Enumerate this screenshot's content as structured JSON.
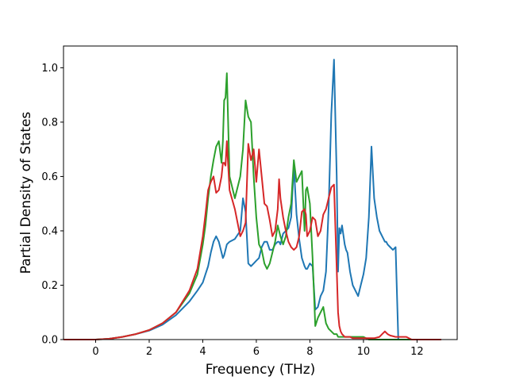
{
  "chart_data": {
    "type": "line",
    "title": "",
    "xlabel": "Frequency (THz)",
    "ylabel": "Partial Density of States",
    "xlim": [
      -1.2,
      13.5
    ],
    "ylim": [
      0,
      1.08
    ],
    "xticks": [
      "0",
      "2",
      "4",
      "6",
      "8",
      "10",
      "12"
    ],
    "yticks": [
      "0.0",
      "0.2",
      "0.4",
      "0.6",
      "0.8",
      "1.0"
    ],
    "grid": false,
    "legend": "none",
    "series": [
      {
        "color": "#1f77b4",
        "x": [
          -1.2,
          0,
          0.5,
          1,
          1.5,
          2,
          2.5,
          3,
          3.5,
          3.8,
          4.0,
          4.1,
          4.2,
          4.3,
          4.4,
          4.5,
          4.6,
          4.7,
          4.75,
          4.8,
          4.85,
          4.9,
          5.0,
          5.2,
          5.4,
          5.5,
          5.6,
          5.7,
          5.8,
          5.9,
          6.0,
          6.1,
          6.2,
          6.3,
          6.4,
          6.5,
          6.6,
          6.7,
          6.8,
          6.85,
          6.9,
          7.0,
          7.1,
          7.2,
          7.3,
          7.4,
          7.5,
          7.6,
          7.7,
          7.8,
          7.85,
          7.9,
          8.0,
          8.1,
          8.2,
          8.3,
          8.4,
          8.5,
          8.6,
          8.7,
          8.8,
          8.9,
          9.0,
          9.05,
          9.1,
          9.15,
          9.2,
          9.3,
          9.35,
          9.4,
          9.5,
          9.6,
          9.8,
          9.9,
          10.0,
          10.1,
          10.2,
          10.3,
          10.4,
          10.5,
          10.6,
          10.7,
          10.75,
          10.8,
          10.85,
          10.9,
          11.0,
          11.1,
          11.2,
          11.3,
          11.4,
          11.5,
          11.6,
          11.65,
          11.7,
          11.75,
          12.0,
          12.9
        ],
        "y": [
          0.0,
          0.0,
          0.003,
          0.01,
          0.02,
          0.033,
          0.055,
          0.09,
          0.14,
          0.18,
          0.21,
          0.24,
          0.27,
          0.32,
          0.36,
          0.38,
          0.36,
          0.32,
          0.3,
          0.31,
          0.33,
          0.35,
          0.36,
          0.37,
          0.4,
          0.52,
          0.47,
          0.28,
          0.27,
          0.28,
          0.29,
          0.3,
          0.34,
          0.36,
          0.36,
          0.33,
          0.33,
          0.35,
          0.36,
          0.36,
          0.35,
          0.39,
          0.4,
          0.41,
          0.45,
          0.64,
          0.46,
          0.37,
          0.3,
          0.27,
          0.26,
          0.26,
          0.28,
          0.27,
          0.11,
          0.12,
          0.16,
          0.18,
          0.25,
          0.48,
          0.83,
          1.03,
          0.6,
          0.25,
          0.41,
          0.39,
          0.42,
          0.35,
          0.33,
          0.32,
          0.25,
          0.2,
          0.16,
          0.2,
          0.24,
          0.3,
          0.45,
          0.71,
          0.52,
          0.45,
          0.4,
          0.38,
          0.37,
          0.36,
          0.36,
          0.35,
          0.34,
          0.33,
          0.34,
          0.0,
          0.0,
          0.0,
          0.0,
          0.0,
          0.0,
          0.0,
          0.0,
          0.0
        ]
      },
      {
        "color": "#2ca02c",
        "x": [
          -1.2,
          0,
          0.5,
          1,
          1.5,
          2,
          2.5,
          3,
          3.5,
          3.8,
          4.0,
          4.1,
          4.2,
          4.3,
          4.4,
          4.5,
          4.6,
          4.7,
          4.75,
          4.8,
          4.85,
          4.9,
          5.0,
          5.2,
          5.4,
          5.5,
          5.6,
          5.7,
          5.8,
          5.9,
          6.0,
          6.1,
          6.2,
          6.3,
          6.4,
          6.5,
          6.6,
          6.7,
          6.8,
          6.85,
          6.9,
          7.0,
          7.1,
          7.2,
          7.3,
          7.4,
          7.5,
          7.6,
          7.7,
          7.8,
          7.85,
          7.9,
          8.0,
          8.1,
          8.2,
          8.3,
          8.4,
          8.5,
          8.6,
          8.7,
          8.8,
          8.9,
          9.0,
          9.05,
          9.1,
          9.15,
          9.2,
          9.3,
          9.4,
          9.5,
          9.6,
          9.8,
          10.0,
          10.2,
          10.4,
          10.6,
          10.8,
          11.0,
          11.2,
          11.4,
          11.6,
          11.8,
          12.0,
          12.9
        ],
        "y": [
          0.0,
          0.0,
          0.003,
          0.01,
          0.02,
          0.035,
          0.06,
          0.1,
          0.17,
          0.24,
          0.35,
          0.42,
          0.52,
          0.6,
          0.66,
          0.71,
          0.73,
          0.65,
          0.73,
          0.88,
          0.89,
          0.98,
          0.6,
          0.52,
          0.6,
          0.7,
          0.88,
          0.82,
          0.8,
          0.6,
          0.45,
          0.35,
          0.33,
          0.28,
          0.26,
          0.28,
          0.32,
          0.36,
          0.42,
          0.4,
          0.38,
          0.35,
          0.38,
          0.45,
          0.5,
          0.66,
          0.58,
          0.6,
          0.62,
          0.4,
          0.55,
          0.56,
          0.5,
          0.3,
          0.05,
          0.08,
          0.1,
          0.12,
          0.06,
          0.04,
          0.03,
          0.02,
          0.02,
          0.01,
          0.01,
          0.01,
          0.01,
          0.01,
          0.01,
          0.01,
          0.01,
          0.01,
          0.01,
          0.0,
          0.0,
          0.0,
          0.0,
          0.0,
          0.0,
          0.0,
          0.0,
          0.0,
          0.0,
          0.0
        ]
      },
      {
        "color": "#d62728",
        "x": [
          -1.2,
          0,
          0.5,
          1,
          1.5,
          2,
          2.5,
          3,
          3.5,
          3.8,
          4.0,
          4.1,
          4.2,
          4.3,
          4.4,
          4.5,
          4.6,
          4.7,
          4.75,
          4.8,
          4.85,
          4.9,
          5.0,
          5.2,
          5.4,
          5.5,
          5.6,
          5.7,
          5.8,
          5.9,
          6.0,
          6.1,
          6.2,
          6.3,
          6.4,
          6.5,
          6.6,
          6.7,
          6.8,
          6.85,
          6.9,
          7.0,
          7.1,
          7.2,
          7.3,
          7.4,
          7.5,
          7.6,
          7.7,
          7.8,
          7.85,
          7.9,
          8.0,
          8.1,
          8.2,
          8.3,
          8.4,
          8.5,
          8.6,
          8.7,
          8.8,
          8.9,
          9.0,
          9.05,
          9.1,
          9.15,
          9.2,
          9.3,
          9.4,
          9.5,
          9.6,
          9.8,
          10.0,
          10.2,
          10.4,
          10.6,
          10.7,
          10.8,
          10.9,
          11.0,
          11.2,
          11.4,
          11.6,
          11.8,
          12.0,
          12.9
        ],
        "y": [
          0.0,
          0.0,
          0.003,
          0.01,
          0.02,
          0.035,
          0.06,
          0.1,
          0.18,
          0.26,
          0.38,
          0.46,
          0.55,
          0.58,
          0.6,
          0.54,
          0.55,
          0.6,
          0.65,
          0.65,
          0.64,
          0.73,
          0.55,
          0.48,
          0.38,
          0.4,
          0.43,
          0.72,
          0.66,
          0.7,
          0.58,
          0.7,
          0.6,
          0.5,
          0.49,
          0.44,
          0.38,
          0.4,
          0.48,
          0.59,
          0.52,
          0.45,
          0.4,
          0.36,
          0.34,
          0.33,
          0.34,
          0.38,
          0.47,
          0.48,
          0.46,
          0.38,
          0.4,
          0.45,
          0.44,
          0.38,
          0.4,
          0.46,
          0.48,
          0.52,
          0.56,
          0.57,
          0.26,
          0.1,
          0.05,
          0.03,
          0.02,
          0.01,
          0.01,
          0.01,
          0.005,
          0.005,
          0.005,
          0.005,
          0.005,
          0.01,
          0.02,
          0.03,
          0.02,
          0.015,
          0.01,
          0.01,
          0.01,
          0.0,
          0.0,
          0.0
        ]
      }
    ]
  }
}
